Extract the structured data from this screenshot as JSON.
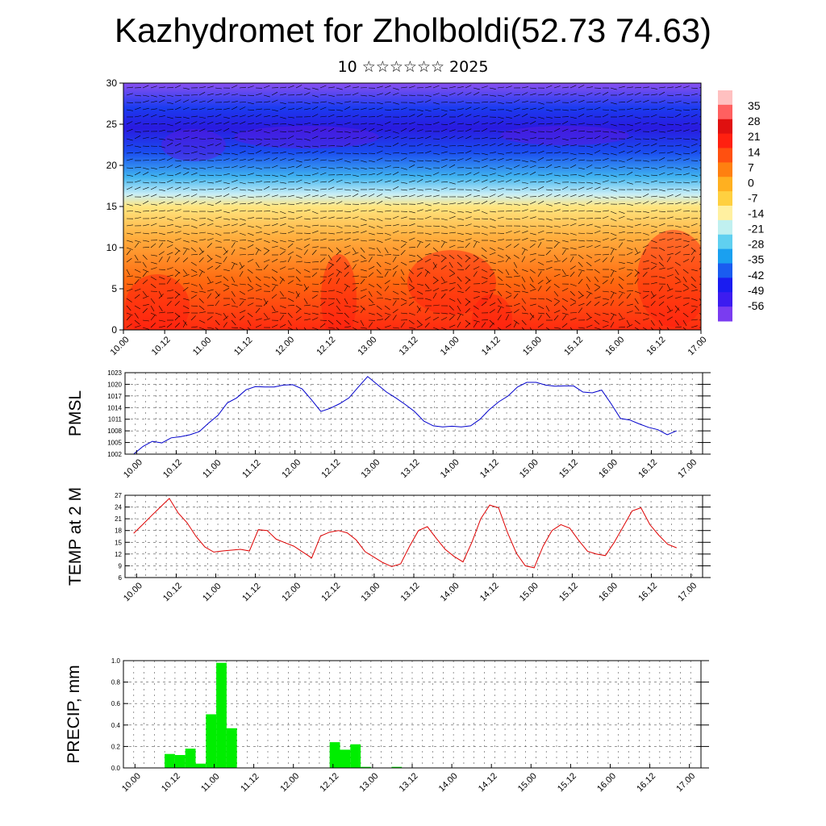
{
  "header": {
    "title": "Kazhydromet for Zholboldi(52.73 74.63)",
    "subtitle": "10 ☆☆☆☆☆☆ 2025"
  },
  "colors": {
    "pmsl_line": "#0000cc",
    "temp_line": "#dd0000",
    "precip_bar": "#00ee00",
    "colorbar": [
      "#7a3cf0",
      "#3c1cf0",
      "#1a1cf0",
      "#1a5cf0",
      "#1aa0f0",
      "#60d0f0",
      "#c0f0f0",
      "#fff0a0",
      "#ffd040",
      "#ffb020",
      "#ff8010",
      "#ff5010",
      "#ff2010",
      "#e01010",
      "#ff6060",
      "#ffc0c0"
    ]
  },
  "chart_data": [
    {
      "type": "heatmap",
      "name_key": "cross-section",
      "title": "",
      "xlabel": "",
      "ylabel": "",
      "x_ticks": [
        "10.00",
        "10.12",
        "11.00",
        "11.12",
        "12.00",
        "12.12",
        "13.00",
        "13.12",
        "14.00",
        "14.12",
        "15.00",
        "15.12",
        "16.00",
        "16.12",
        "17.00"
      ],
      "y_ticks": [
        "0",
        "5",
        "10",
        "15",
        "20",
        "25",
        "30"
      ],
      "ylim": [
        0,
        30
      ],
      "colorbar_labels": [
        "35",
        "28",
        "21",
        "14",
        "7",
        "0",
        "-7",
        "-14",
        "-21",
        "-28",
        "-35",
        "-42",
        "-49",
        "-56"
      ],
      "colorbar_range": [
        -63,
        42
      ],
      "grid": false
    },
    {
      "type": "line",
      "ylabel": "PMSL",
      "x_ticks": [
        "10.00",
        "10.12",
        "11.00",
        "11.12",
        "12.00",
        "12.12",
        "13.00",
        "13.12",
        "14.00",
        "14.12",
        "15.00",
        "15.12",
        "16.00",
        "16.12",
        "17.00"
      ],
      "y_ticks": [
        "1002",
        "1005",
        "1008",
        "1011",
        "1014",
        "1017",
        "1020",
        "1023"
      ],
      "ylim": [
        1002,
        1023
      ],
      "grid": true,
      "series": [
        {
          "values": [
            1002.0,
            1004.0,
            1005.3,
            1004.9,
            1006.2,
            1006.5,
            1007.0,
            1007.8,
            1010.0,
            1012.0,
            1015.2,
            1016.5,
            1018.6,
            1019.4,
            1019.3,
            1019.3,
            1019.8,
            1019.9,
            1018.8,
            1016.0,
            1013.0,
            1013.8,
            1015.0,
            1016.5,
            1019.3,
            1022.0,
            1020.0,
            1018.0,
            1016.5,
            1014.8,
            1013.0,
            1010.5,
            1009.3,
            1009.0,
            1009.2,
            1009.0,
            1009.3,
            1011.0,
            1013.5,
            1015.5,
            1017.0,
            1019.3,
            1020.5,
            1020.5,
            1019.8,
            1019.5,
            1019.6,
            1019.6,
            1018.0,
            1017.8,
            1018.5,
            1015.0,
            1011.2,
            1010.8,
            1009.8,
            1008.9,
            1008.3,
            1007.0,
            1008.0
          ]
        }
      ]
    },
    {
      "type": "line",
      "ylabel": "TEMP at 2 M",
      "x_ticks": [
        "10.00",
        "10.12",
        "11.00",
        "11.12",
        "12.00",
        "12.12",
        "13.00",
        "13.12",
        "14.00",
        "14.12",
        "15.00",
        "15.12",
        "16.00",
        "16.12",
        "17.00"
      ],
      "y_ticks": [
        "6",
        "9",
        "12",
        "15",
        "18",
        "21",
        "24",
        "27"
      ],
      "ylim": [
        6,
        27
      ],
      "grid": true,
      "series": [
        {
          "values": [
            17.3,
            19.5,
            21.8,
            24.0,
            26.2,
            22.5,
            20.0,
            16.5,
            13.8,
            12.5,
            12.8,
            13.0,
            13.2,
            12.8,
            18.2,
            18.0,
            15.8,
            14.9,
            14.0,
            12.5,
            11.0,
            16.6,
            17.6,
            18.0,
            17.4,
            15.6,
            12.6,
            11.2,
            9.8,
            8.8,
            9.5,
            14.0,
            18.0,
            19.0,
            16.0,
            13.2,
            11.4,
            10.0,
            15.0,
            21.0,
            24.5,
            23.8,
            17.5,
            12.2,
            9.0,
            8.5,
            14.0,
            18.0,
            19.5,
            18.6,
            15.5,
            12.7,
            12.0,
            11.6,
            15.0,
            19.0,
            23.0,
            23.8,
            19.5,
            16.8,
            14.5,
            13.6
          ]
        }
      ]
    },
    {
      "type": "bar",
      "ylabel": "PRECIP, mm",
      "x_ticks": [
        "10.00",
        "10.12",
        "11.00",
        "11.12",
        "12.00",
        "12.12",
        "13.00",
        "13.12",
        "14.00",
        "14.12",
        "15.00",
        "15.12",
        "16.00",
        "16.12",
        "17.00"
      ],
      "y_ticks": [
        "0.0",
        "0.2",
        "0.4",
        "0.6",
        "0.8",
        "1.0"
      ],
      "ylim": [
        0,
        1
      ],
      "grid": true,
      "series": [
        {
          "values": [
            0,
            0,
            0,
            0,
            0.13,
            0.12,
            0.18,
            0.04,
            0.5,
            0.98,
            0.37,
            0,
            0,
            0,
            0,
            0,
            0,
            0,
            0,
            0,
            0.24,
            0.17,
            0.22,
            0.01,
            0,
            0,
            0.01,
            0,
            0,
            0,
            0,
            0,
            0,
            0,
            0,
            0,
            0,
            0,
            0,
            0,
            0,
            0,
            0,
            0,
            0,
            0,
            0,
            0,
            0,
            0,
            0,
            0,
            0,
            0,
            0,
            0,
            0
          ]
        }
      ]
    }
  ]
}
